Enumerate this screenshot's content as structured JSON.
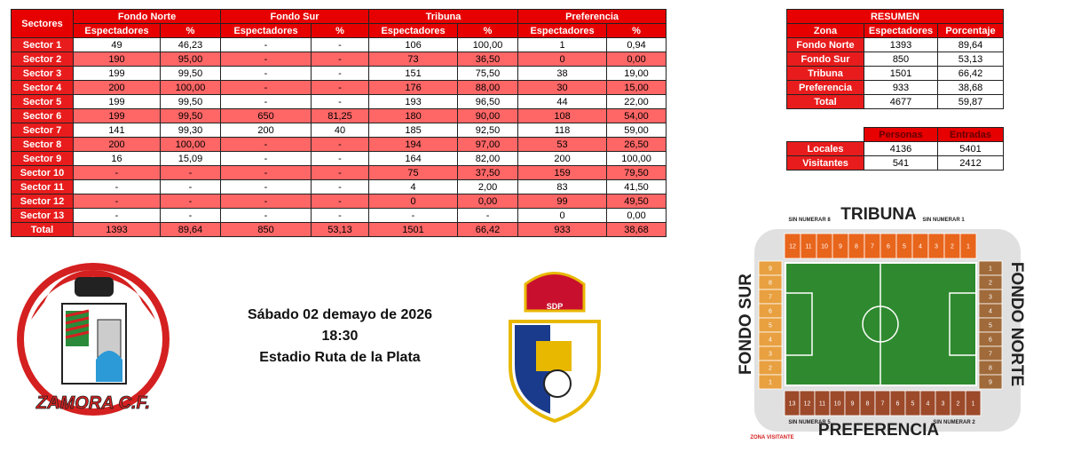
{
  "main_table": {
    "corner": "Sectores",
    "groups": [
      "Fondo Norte",
      "Fondo Sur",
      "Tribuna",
      "Preferencia"
    ],
    "subheaders": [
      "Espectadores",
      "%",
      "Espectadores",
      "%",
      "Espectadores",
      "%",
      "Espectadores",
      "%"
    ],
    "rows": [
      [
        "Sector 1",
        "49",
        "46,23",
        "-",
        "-",
        "106",
        "100,00",
        "1",
        "0,94"
      ],
      [
        "Sector 2",
        "190",
        "95,00",
        "-",
        "-",
        "73",
        "36,50",
        "0",
        "0,00"
      ],
      [
        "Sector 3",
        "199",
        "99,50",
        "-",
        "-",
        "151",
        "75,50",
        "38",
        "19,00"
      ],
      [
        "Sector 4",
        "200",
        "100,00",
        "-",
        "-",
        "176",
        "88,00",
        "30",
        "15,00"
      ],
      [
        "Sector 5",
        "199",
        "99,50",
        "-",
        "-",
        "193",
        "96,50",
        "44",
        "22,00"
      ],
      [
        "Sector 6",
        "199",
        "99,50",
        "650",
        "81,25",
        "180",
        "90,00",
        "108",
        "54,00"
      ],
      [
        "Sector 7",
        "141",
        "99,30",
        "200",
        "40",
        "185",
        "92,50",
        "118",
        "59,00"
      ],
      [
        "Sector 8",
        "200",
        "100,00",
        "-",
        "-",
        "194",
        "97,00",
        "53",
        "26,50"
      ],
      [
        "Sector 9",
        "16",
        "15,09",
        "-",
        "-",
        "164",
        "82,00",
        "200",
        "100,00"
      ],
      [
        "Sector 10",
        "-",
        "-",
        "-",
        "-",
        "75",
        "37,50",
        "159",
        "79,50"
      ],
      [
        "Sector 11",
        "-",
        "-",
        "-",
        "-",
        "4",
        "2,00",
        "83",
        "41,50"
      ],
      [
        "Sector 12",
        "-",
        "-",
        "-",
        "-",
        "0",
        "0,00",
        "99",
        "49,50"
      ],
      [
        "Sector 13",
        "-",
        "-",
        "-",
        "-",
        "-",
        "-",
        "0",
        "0,00"
      ],
      [
        "Total",
        "1393",
        "89,64",
        "850",
        "53,13",
        "1501",
        "66,42",
        "933",
        "38,68"
      ]
    ]
  },
  "summary": {
    "title": "RESUMEN",
    "headers": [
      "Zona",
      "Espectadores",
      "Porcentaje"
    ],
    "rows": [
      [
        "Fondo Norte",
        "1393",
        "89,64"
      ],
      [
        "Fondo Sur",
        "850",
        "53,13"
      ],
      [
        "Tribuna",
        "1501",
        "66,42"
      ],
      [
        "Preferencia",
        "933",
        "38,68"
      ],
      [
        "Total",
        "4677",
        "59,87"
      ]
    ]
  },
  "attendance": {
    "headers": [
      "Personas",
      "Entradas"
    ],
    "rows": [
      [
        "Locales",
        "4136",
        "5401"
      ],
      [
        "Visitantes",
        "541",
        "2412"
      ]
    ]
  },
  "match": {
    "date": "Sábado 02 demayo de 2026",
    "time": "18:30",
    "venue": "Estadio Ruta de la Plata"
  },
  "logos": {
    "home": "ZAMORA C.F.",
    "away": "SDP"
  },
  "stadium": {
    "north": "TRIBUNA",
    "south": "PREFERENCIA",
    "west": "FONDO SUR",
    "east": "FONDO NORTE",
    "unnumbered": [
      "SIN NUMERAR 8",
      "SIN NUMERAR 1",
      "SIN NUMERAR 5",
      "SIN NUMERAR 2"
    ],
    "away_zone": "ZONA VISITANTE",
    "top_sectors": [
      "12",
      "11",
      "10",
      "9",
      "8",
      "7",
      "6",
      "5",
      "4",
      "3",
      "2",
      "1"
    ],
    "bottom_sectors": [
      "13",
      "12",
      "11",
      "10",
      "9",
      "8",
      "7",
      "6",
      "5",
      "4",
      "3",
      "2",
      "1"
    ],
    "west_sectors": [
      "9",
      "8",
      "7",
      "6",
      "5",
      "4",
      "3",
      "2",
      "1"
    ],
    "east_sectors": [
      "1",
      "2",
      "3",
      "4",
      "5",
      "6",
      "7",
      "8",
      "9"
    ]
  }
}
